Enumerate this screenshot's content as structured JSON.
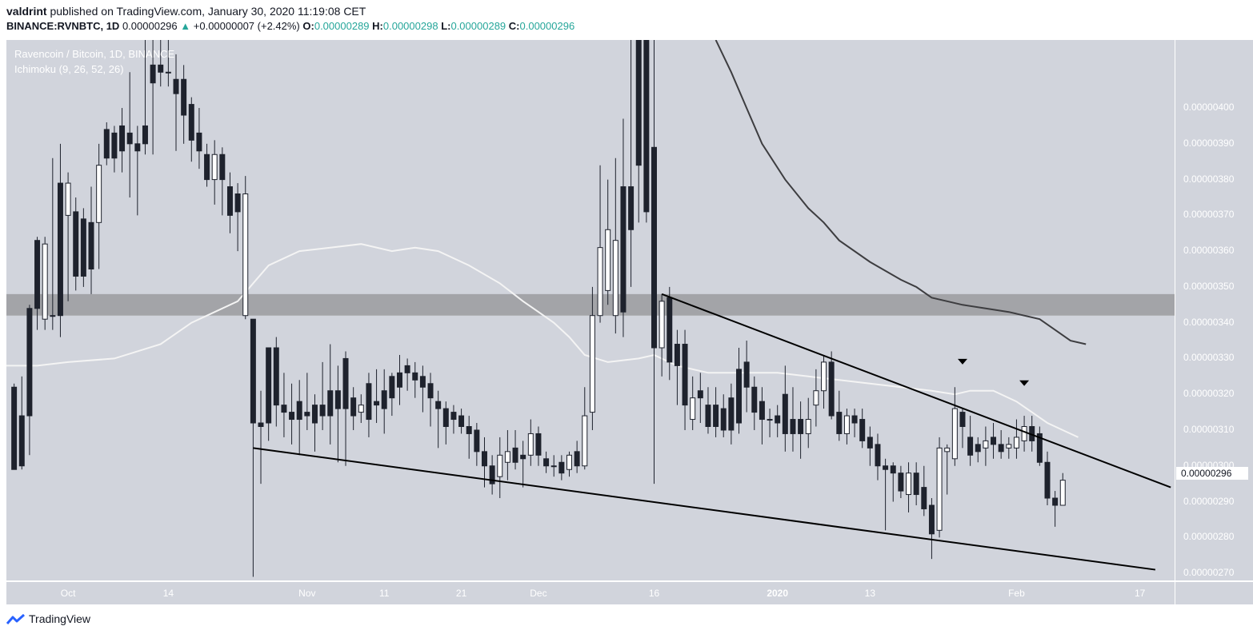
{
  "header": {
    "user": "valdrint",
    "published_text": "published on TradingView.com, January 30, 2020 11:19:08 CET",
    "symbol": "BINANCE:RVNBTC, 1D",
    "last": "0.00000296",
    "change": "+0.00000007 (+2.42%)",
    "o_label": "O:",
    "o_value": "0.00000289",
    "h_label": "H:",
    "h_value": "0.00000298",
    "l_label": "L:",
    "l_value": "0.00000289",
    "c_label": "C:",
    "c_value": "0.00000296"
  },
  "legend": {
    "pair": "Ravencoin / Bitcoin, 1D, BINANCE",
    "indicator": "Ichimoku (9, 26, 52, 26)"
  },
  "current_price_label": "0.00000296",
  "footer": {
    "brand": "TradingView"
  },
  "colors": {
    "background": "#d1d4dc",
    "zone": "#a3a4a8",
    "bull_body": "#ffffff",
    "bear_body": "#1e222d",
    "ma_light": "#f4f4f4",
    "ma_dark": "#3d3d40",
    "trendline": "#000000",
    "up_text": "#26a69a"
  },
  "chart_data": {
    "type": "candlestick",
    "title": "Ravencoin / Bitcoin, 1D, BINANCE",
    "y_ticks": [
      "0.00000400",
      "0.00000390",
      "0.00000380",
      "0.00000370",
      "0.00000360",
      "0.00000350",
      "0.00000340",
      "0.00000330",
      "0.00000320",
      "0.00000310",
      "0.00000300",
      "0.00000290",
      "0.00000280",
      "0.00000270"
    ],
    "y_tick_values": [
      4.0,
      3.9,
      3.8,
      3.7,
      3.6,
      3.5,
      3.4,
      3.3,
      3.2,
      3.1,
      3.0,
      2.9,
      2.8,
      2.7
    ],
    "ylim": [
      2.68,
      4.19
    ],
    "y_unit": "x 1e-6 BTC",
    "x_ticks": [
      {
        "label": "Oct",
        "day": 0
      },
      {
        "label": "14",
        "day": 13
      },
      {
        "label": "Nov",
        "day": 31
      },
      {
        "label": "11",
        "day": 41
      },
      {
        "label": "21",
        "day": 51
      },
      {
        "label": "Dec",
        "day": 61
      },
      {
        "label": "16",
        "day": 76
      },
      {
        "label": "2020",
        "day": 92,
        "bold": true
      },
      {
        "label": "13",
        "day": 104
      },
      {
        "label": "Feb",
        "day": 123
      },
      {
        "label": "17",
        "day": 139
      }
    ],
    "x_day_start": -8,
    "x_day_end": 143.5,
    "candles": [
      [
        -7,
        3.22,
        2.99,
        3.23,
        3.0
      ],
      [
        -6,
        3.14,
        3.0,
        3.25,
        2.99
      ],
      [
        -5,
        3.44,
        3.14,
        3.45,
        3.03
      ],
      [
        -4,
        3.63,
        3.44,
        3.64,
        3.38
      ],
      [
        -3,
        3.41,
        3.62,
        3.64,
        3.38
      ],
      [
        -2,
        3.42,
        3.42,
        3.86,
        3.38
      ],
      [
        -1,
        3.79,
        3.42,
        3.9,
        3.36
      ],
      [
        0,
        3.7,
        3.79,
        3.82,
        3.46
      ],
      [
        1,
        3.71,
        3.53,
        3.75,
        3.49
      ],
      [
        2,
        3.69,
        3.53,
        3.72,
        3.5
      ],
      [
        3,
        3.68,
        3.55,
        3.78,
        3.48
      ],
      [
        4,
        3.68,
        3.84,
        3.9,
        3.55
      ],
      [
        5,
        3.94,
        3.86,
        3.96,
        3.84
      ],
      [
        6,
        3.93,
        3.86,
        3.95,
        3.82
      ],
      [
        7,
        3.95,
        3.88,
        4.0,
        3.82
      ],
      [
        8,
        3.93,
        3.9,
        4.1,
        3.75
      ],
      [
        9,
        3.9,
        3.88,
        3.95,
        3.7
      ],
      [
        10,
        3.95,
        3.9,
        4.19,
        3.87
      ],
      [
        11,
        4.12,
        4.07,
        4.19,
        3.87
      ],
      [
        12,
        4.12,
        4.1,
        4.19,
        4.06
      ],
      [
        13,
        4.1,
        4.1,
        4.19,
        4.06
      ],
      [
        14,
        4.08,
        4.04,
        4.15,
        3.88
      ],
      [
        15,
        4.08,
        3.98,
        4.12,
        3.9
      ],
      [
        16,
        4.01,
        3.91,
        4.03,
        3.85
      ],
      [
        17,
        3.93,
        3.88,
        4.0,
        3.83
      ],
      [
        18,
        3.87,
        3.8,
        3.9,
        3.78
      ],
      [
        19,
        3.8,
        3.87,
        3.91,
        3.73
      ],
      [
        20,
        3.87,
        3.8,
        3.89,
        3.7
      ],
      [
        21,
        3.78,
        3.7,
        3.82,
        3.65
      ],
      [
        22,
        3.76,
        3.71,
        3.79,
        3.6
      ],
      [
        23,
        3.42,
        3.76,
        3.81,
        3.41
      ],
      [
        24,
        3.41,
        3.12,
        3.41,
        2.69
      ],
      [
        25,
        3.12,
        3.11,
        3.21,
        2.95
      ],
      [
        26,
        3.33,
        3.12,
        3.33,
        3.07
      ],
      [
        27,
        3.33,
        3.17,
        3.36,
        3.11
      ],
      [
        28,
        3.17,
        3.15,
        3.26,
        3.08
      ],
      [
        29,
        3.15,
        3.13,
        3.23,
        3.06
      ],
      [
        30,
        3.18,
        3.13,
        3.24,
        3.03
      ],
      [
        31,
        3.15,
        3.14,
        3.26,
        3.1
      ],
      [
        32,
        3.17,
        3.12,
        3.2,
        3.04
      ],
      [
        33,
        3.17,
        3.14,
        3.29,
        3.1
      ],
      [
        34,
        3.21,
        3.14,
        3.34,
        3.06
      ],
      [
        35,
        3.21,
        3.16,
        3.28,
        3.01
      ],
      [
        36,
        3.3,
        3.16,
        3.32,
        3.0
      ],
      [
        37,
        3.19,
        3.14,
        3.22,
        3.1
      ],
      [
        38,
        3.15,
        3.17,
        3.2,
        3.12
      ],
      [
        39,
        3.23,
        3.13,
        3.26,
        3.08
      ],
      [
        40,
        3.18,
        3.17,
        3.27,
        3.12
      ],
      [
        41,
        3.21,
        3.16,
        3.27,
        3.09
      ],
      [
        42,
        3.25,
        3.19,
        3.26,
        3.14
      ],
      [
        43,
        3.26,
        3.22,
        3.31,
        3.17
      ],
      [
        44,
        3.28,
        3.26,
        3.3,
        3.21
      ],
      [
        45,
        3.26,
        3.24,
        3.29,
        3.19
      ],
      [
        46,
        3.25,
        3.22,
        3.28,
        3.15
      ],
      [
        47,
        3.23,
        3.19,
        3.26,
        3.11
      ],
      [
        48,
        3.18,
        3.16,
        3.21,
        3.05
      ],
      [
        49,
        3.16,
        3.11,
        3.18,
        3.06
      ],
      [
        50,
        3.15,
        3.13,
        3.17,
        3.09
      ],
      [
        51,
        3.14,
        3.11,
        3.16,
        3.09
      ],
      [
        52,
        3.11,
        3.09,
        3.14,
        3.02
      ],
      [
        53,
        3.1,
        3.04,
        3.12,
        3.0
      ],
      [
        54,
        3.04,
        3.0,
        3.08,
        2.94
      ],
      [
        55,
        3.0,
        2.95,
        3.03,
        2.92
      ],
      [
        56,
        2.97,
        3.03,
        3.08,
        2.91
      ],
      [
        57,
        3.01,
        3.04,
        3.1,
        2.96
      ],
      [
        58,
        3.05,
        3.01,
        3.1,
        2.99
      ],
      [
        59,
        3.03,
        3.02,
        3.07,
        2.94
      ],
      [
        60,
        3.03,
        3.09,
        3.13,
        3.0
      ],
      [
        61,
        3.09,
        3.03,
        3.11,
        3.0
      ],
      [
        62,
        3.02,
        3.0,
        3.04,
        2.98
      ],
      [
        63,
        3.0,
        3.0,
        3.03,
        2.97
      ],
      [
        64,
        3.01,
        2.98,
        3.03,
        2.96
      ],
      [
        65,
        2.99,
        3.03,
        3.04,
        2.97
      ],
      [
        66,
        3.04,
        3.0,
        3.07,
        2.98
      ],
      [
        67,
        3.0,
        3.14,
        3.22,
        2.99
      ],
      [
        68,
        3.15,
        3.42,
        3.5,
        3.1
      ],
      [
        69,
        3.42,
        3.61,
        3.84,
        3.4
      ],
      [
        70,
        3.49,
        3.66,
        3.8,
        3.45
      ],
      [
        71,
        3.42,
        3.63,
        3.86,
        3.37
      ],
      [
        72,
        3.78,
        3.43,
        3.97,
        3.36
      ],
      [
        73,
        3.78,
        3.66,
        4.19,
        3.5
      ],
      [
        74,
        4.19,
        3.84,
        4.19,
        3.68
      ],
      [
        75,
        4.19,
        3.71,
        4.19,
        3.68
      ],
      [
        76,
        3.89,
        3.33,
        4.19,
        2.95
      ],
      [
        77,
        3.33,
        3.46,
        3.48,
        3.25
      ],
      [
        78,
        3.47,
        3.29,
        3.5,
        3.24
      ],
      [
        79,
        3.34,
        3.28,
        3.38,
        3.17
      ],
      [
        80,
        3.34,
        3.17,
        3.38,
        3.1
      ],
      [
        81,
        3.13,
        3.19,
        3.25,
        3.1
      ],
      [
        82,
        3.21,
        3.19,
        3.26,
        3.12
      ],
      [
        83,
        3.17,
        3.11,
        3.22,
        3.09
      ],
      [
        84,
        3.17,
        3.11,
        3.22,
        3.08
      ],
      [
        85,
        3.16,
        3.1,
        3.2,
        3.08
      ],
      [
        86,
        3.19,
        3.1,
        3.23,
        3.06
      ],
      [
        87,
        3.27,
        3.12,
        3.33,
        3.09
      ],
      [
        88,
        3.29,
        3.22,
        3.35,
        3.15
      ],
      [
        89,
        3.22,
        3.15,
        3.25,
        3.1
      ],
      [
        90,
        3.18,
        3.13,
        3.22,
        3.06
      ],
      [
        91,
        3.13,
        3.13,
        3.16,
        3.08
      ],
      [
        92,
        3.14,
        3.12,
        3.17,
        3.08
      ],
      [
        93,
        3.2,
        3.09,
        3.28,
        3.04
      ],
      [
        94,
        3.13,
        3.09,
        3.22,
        3.04
      ],
      [
        95,
        3.13,
        3.09,
        3.18,
        3.02
      ],
      [
        96,
        3.09,
        3.13,
        3.19,
        3.05
      ],
      [
        97,
        3.17,
        3.21,
        3.27,
        3.11
      ],
      [
        98,
        3.21,
        3.29,
        3.31,
        3.16
      ],
      [
        99,
        3.29,
        3.14,
        3.32,
        3.13
      ],
      [
        100,
        3.15,
        3.09,
        3.21,
        3.07
      ],
      [
        101,
        3.09,
        3.14,
        3.16,
        3.06
      ],
      [
        102,
        3.14,
        3.12,
        3.16,
        3.08
      ],
      [
        103,
        3.13,
        3.07,
        3.16,
        3.05
      ],
      [
        104,
        3.08,
        3.05,
        3.11,
        3.0
      ],
      [
        105,
        3.06,
        3.0,
        3.09,
        2.96
      ],
      [
        106,
        3.0,
        2.99,
        3.02,
        2.82
      ],
      [
        107,
        3.0,
        2.98,
        3.01,
        2.9
      ],
      [
        108,
        2.98,
        2.93,
        3.0,
        2.91
      ],
      [
        109,
        2.92,
        2.98,
        3.01,
        2.87
      ],
      [
        110,
        2.98,
        2.92,
        3.01,
        2.89
      ],
      [
        111,
        2.94,
        2.88,
        3.0,
        2.86
      ],
      [
        112,
        2.89,
        2.81,
        2.91,
        2.74
      ],
      [
        113,
        2.82,
        3.05,
        3.08,
        2.8
      ],
      [
        114,
        3.04,
        3.05,
        3.06,
        2.92
      ],
      [
        115,
        3.02,
        3.16,
        3.22,
        3.0
      ],
      [
        116,
        3.15,
        3.11,
        3.16,
        3.05
      ],
      [
        117,
        3.08,
        3.03,
        3.14,
        3.0
      ],
      [
        118,
        3.06,
        3.04,
        3.08,
        3.01
      ],
      [
        119,
        3.05,
        3.07,
        3.11,
        3.0
      ],
      [
        120,
        3.08,
        3.06,
        3.12,
        3.02
      ],
      [
        121,
        3.06,
        3.04,
        3.1,
        3.02
      ],
      [
        122,
        3.05,
        3.06,
        3.08,
        3.02
      ],
      [
        123,
        3.05,
        3.08,
        3.13,
        3.02
      ],
      [
        124,
        3.07,
        3.11,
        3.14,
        3.04
      ],
      [
        125,
        3.11,
        3.07,
        3.14,
        3.04
      ],
      [
        126,
        3.09,
        3.01,
        3.11,
        3.0
      ],
      [
        127,
        3.01,
        2.91,
        3.04,
        2.89
      ],
      [
        128,
        2.91,
        2.89,
        2.93,
        2.83
      ],
      [
        129,
        2.89,
        2.96,
        2.98,
        2.89
      ]
    ],
    "series": [
      {
        "name": "",
        "kind": "moving-average-light",
        "points": [
          [
            -8,
            3.28
          ],
          [
            -4,
            3.28
          ],
          [
            0,
            3.29
          ],
          [
            6,
            3.3
          ],
          [
            12,
            3.34
          ],
          [
            16,
            3.4
          ],
          [
            22,
            3.46
          ],
          [
            26,
            3.56
          ],
          [
            30,
            3.6
          ],
          [
            34,
            3.61
          ],
          [
            38,
            3.62
          ],
          [
            42,
            3.6
          ],
          [
            45,
            3.61
          ],
          [
            48,
            3.6
          ],
          [
            52,
            3.56
          ],
          [
            56,
            3.51
          ],
          [
            59,
            3.46
          ],
          [
            61,
            3.43
          ],
          [
            63,
            3.4
          ],
          [
            65,
            3.36
          ],
          [
            67,
            3.31
          ],
          [
            70,
            3.29
          ],
          [
            74,
            3.3
          ],
          [
            76,
            3.31
          ],
          [
            79,
            3.28
          ],
          [
            83,
            3.26
          ],
          [
            88,
            3.26
          ],
          [
            92,
            3.26
          ],
          [
            96,
            3.25
          ],
          [
            100,
            3.24
          ],
          [
            104,
            3.23
          ],
          [
            108,
            3.22
          ],
          [
            112,
            3.21
          ],
          [
            115,
            3.2
          ],
          [
            117,
            3.21
          ],
          [
            120,
            3.21
          ],
          [
            123,
            3.18
          ],
          [
            125,
            3.15
          ],
          [
            127,
            3.12
          ],
          [
            129,
            3.1
          ],
          [
            131,
            3.08
          ]
        ]
      },
      {
        "name": "",
        "kind": "moving-average-dark",
        "points": [
          [
            84,
            4.19
          ],
          [
            86,
            4.1
          ],
          [
            88,
            4.0
          ],
          [
            90,
            3.9
          ],
          [
            93,
            3.8
          ],
          [
            96,
            3.72
          ],
          [
            98,
            3.68
          ],
          [
            100,
            3.63
          ],
          [
            104,
            3.57
          ],
          [
            108,
            3.52
          ],
          [
            110,
            3.5
          ],
          [
            112,
            3.47
          ],
          [
            114,
            3.46
          ],
          [
            116,
            3.45
          ],
          [
            119,
            3.44
          ],
          [
            122,
            3.43
          ],
          [
            126,
            3.41
          ],
          [
            128,
            3.38
          ],
          [
            130,
            3.35
          ],
          [
            132,
            3.34
          ]
        ]
      }
    ],
    "trendlines": [
      {
        "kind": "upper",
        "from": [
          77,
          3.48
        ],
        "to": [
          143,
          2.94
        ]
      },
      {
        "kind": "lower",
        "from": [
          24,
          3.05
        ],
        "to": [
          141,
          2.71
        ]
      }
    ],
    "resistance_zone": [
      3.42,
      3.48
    ],
    "arrows": [
      [
        116,
        3.29
      ],
      [
        124,
        3.23
      ]
    ]
  }
}
